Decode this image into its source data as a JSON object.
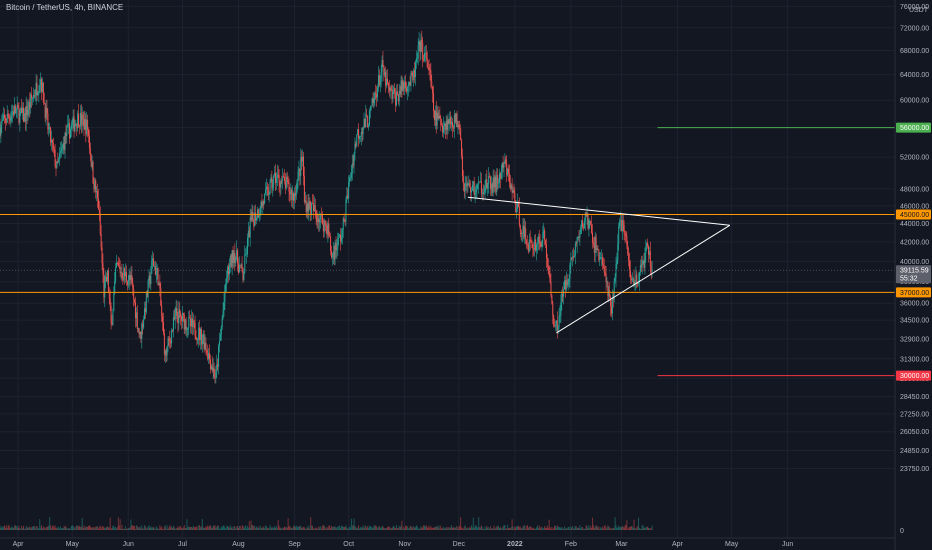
{
  "header": {
    "title": "Bitcoin / TetherUS, 4h, BINANCE",
    "unit": "USDT"
  },
  "colors": {
    "background": "#131722",
    "grid": "#1e2230",
    "up": "#26a69a",
    "down": "#ef5350",
    "axis_text": "#b2b5be",
    "trendline": "#ffffff",
    "level_green": "#4caf50",
    "level_orange": "#ff9800",
    "level_red": "#f23645"
  },
  "chart_data": {
    "type": "candlestick",
    "symbol": "BTCUSDT",
    "timeframe": "4h",
    "exchange": "BINANCE",
    "x_range": [
      "2021-03-22",
      "2022-06-30"
    ],
    "y_scale": "log",
    "y_range": [
      21500,
      78000
    ],
    "grid": true,
    "y_ticks": [
      76000,
      72000,
      68000,
      64000,
      60000,
      56000,
      52000,
      48000,
      46000,
      44000,
      42000,
      40000,
      38000,
      36000,
      34500,
      32900,
      31300,
      29800,
      28450,
      27250,
      26050,
      24850,
      23750
    ],
    "y_tick_labels": [
      "76000.00",
      "72000.00",
      "68000.00",
      "64000.00",
      "60000.00",
      "56000.00",
      "52000.00",
      "48000.00",
      "46000.00",
      "44000.00",
      "42000.00",
      "40000.00",
      "38000.00",
      "36000.00",
      "34500.00",
      "32900.00",
      "31300.00",
      "29800.00",
      "28450.00",
      "27250.00",
      "26050.00",
      "24850.00",
      "23750.00"
    ],
    "x_ticks": [
      {
        "date": "2021-04-01",
        "label": "Apr"
      },
      {
        "date": "2021-05-01",
        "label": "May"
      },
      {
        "date": "2021-06-01",
        "label": "Jun"
      },
      {
        "date": "2021-07-01",
        "label": "Jul"
      },
      {
        "date": "2021-08-01",
        "label": "Aug"
      },
      {
        "date": "2021-09-01",
        "label": "Sep"
      },
      {
        "date": "2021-10-01",
        "label": "Oct"
      },
      {
        "date": "2021-11-01",
        "label": "Nov"
      },
      {
        "date": "2021-12-01",
        "label": "Dec"
      },
      {
        "date": "2022-01-01",
        "label": "2022"
      },
      {
        "date": "2022-02-01",
        "label": "Feb"
      },
      {
        "date": "2022-03-01",
        "label": "Mar"
      },
      {
        "date": "2022-04-01",
        "label": "Apr"
      },
      {
        "date": "2022-05-01",
        "label": "May"
      },
      {
        "date": "2022-06-01",
        "label": "Jun"
      }
    ],
    "price_path": [
      [
        "2021-03-22",
        56000
      ],
      [
        "2021-03-30",
        58500
      ],
      [
        "2021-04-05",
        57500
      ],
      [
        "2021-04-14",
        63500
      ],
      [
        "2021-04-18",
        56000
      ],
      [
        "2021-04-23",
        50500
      ],
      [
        "2021-04-28",
        55000
      ],
      [
        "2021-05-05",
        57500
      ],
      [
        "2021-05-10",
        56000
      ],
      [
        "2021-05-13",
        49500
      ],
      [
        "2021-05-16",
        46000
      ],
      [
        "2021-05-19",
        37000
      ],
      [
        "2021-05-21",
        38500
      ],
      [
        "2021-05-23",
        34000
      ],
      [
        "2021-05-26",
        39500
      ],
      [
        "2021-06-03",
        38000
      ],
      [
        "2021-06-08",
        33000
      ],
      [
        "2021-06-15",
        40000
      ],
      [
        "2021-06-18",
        38500
      ],
      [
        "2021-06-22",
        31500
      ],
      [
        "2021-06-28",
        35000
      ],
      [
        "2021-07-06",
        34000
      ],
      [
        "2021-07-13",
        33000
      ],
      [
        "2021-07-20",
        29800
      ],
      [
        "2021-07-26",
        38500
      ],
      [
        "2021-07-30",
        41000
      ],
      [
        "2021-08-04",
        38500
      ],
      [
        "2021-08-08",
        44000
      ],
      [
        "2021-08-14",
        46000
      ],
      [
        "2021-08-22",
        49500
      ],
      [
        "2021-08-28",
        48500
      ],
      [
        "2021-09-01",
        47000
      ],
      [
        "2021-09-06",
        52000
      ],
      [
        "2021-09-07",
        46500
      ],
      [
        "2021-09-12",
        45500
      ],
      [
        "2021-09-20",
        43500
      ],
      [
        "2021-09-22",
        40500
      ],
      [
        "2021-09-28",
        43000
      ],
      [
        "2021-10-01",
        47500
      ],
      [
        "2021-10-06",
        55000
      ],
      [
        "2021-10-13",
        57500
      ],
      [
        "2021-10-20",
        65000
      ],
      [
        "2021-10-24",
        61000
      ],
      [
        "2021-10-28",
        60500
      ],
      [
        "2021-11-01",
        62500
      ],
      [
        "2021-11-06",
        63000
      ],
      [
        "2021-11-10",
        69000
      ],
      [
        "2021-11-15",
        65000
      ],
      [
        "2021-11-18",
        57500
      ],
      [
        "2021-11-23",
        56500
      ],
      [
        "2021-11-28",
        57000
      ],
      [
        "2021-12-02",
        57000
      ],
      [
        "2021-12-04",
        48500
      ],
      [
        "2021-12-10",
        48000
      ],
      [
        "2021-12-16",
        48500
      ],
      [
        "2021-12-22",
        48500
      ],
      [
        "2021-12-27",
        51000
      ],
      [
        "2022-01-01",
        47000
      ],
      [
        "2022-01-06",
        43000
      ],
      [
        "2022-01-10",
        41500
      ],
      [
        "2022-01-18",
        42500
      ],
      [
        "2022-01-22",
        36000
      ],
      [
        "2022-01-24",
        33500
      ],
      [
        "2022-01-29",
        37500
      ],
      [
        "2022-02-04",
        41500
      ],
      [
        "2022-02-10",
        45000
      ],
      [
        "2022-02-14",
        42000
      ],
      [
        "2022-02-19",
        40000
      ],
      [
        "2022-02-24",
        35000
      ],
      [
        "2022-02-28",
        43000
      ],
      [
        "2022-03-02",
        44500
      ],
      [
        "2022-03-07",
        38000
      ],
      [
        "2022-03-12",
        38800
      ],
      [
        "2022-03-16",
        41500
      ],
      [
        "2022-03-18",
        39115.59
      ]
    ],
    "last_price": 39115.59,
    "last_price_label": "39115.59",
    "countdown_label": "55:32",
    "levels": [
      {
        "price": 56000,
        "label": "56000.00",
        "color": "#4caf50",
        "from": "2022-03-21"
      },
      {
        "price": 45000,
        "label": "45000.00",
        "color": "#ff9800",
        "from": "2021-03-22"
      },
      {
        "price": 37000,
        "label": "37000.00",
        "color": "#ff9800",
        "from": "2021-03-22"
      },
      {
        "price": 30000,
        "label": "30000.00",
        "color": "#f23645",
        "from": "2022-03-21"
      }
    ],
    "trendlines": [
      {
        "name": "upper",
        "from": [
          "2021-12-06",
          47000
        ],
        "to": [
          "2022-04-30",
          43800
        ]
      },
      {
        "name": "lower",
        "from": [
          "2022-01-24",
          33400
        ],
        "to": [
          "2022-04-30",
          43800
        ]
      }
    ],
    "volume_axis_label": "0"
  }
}
